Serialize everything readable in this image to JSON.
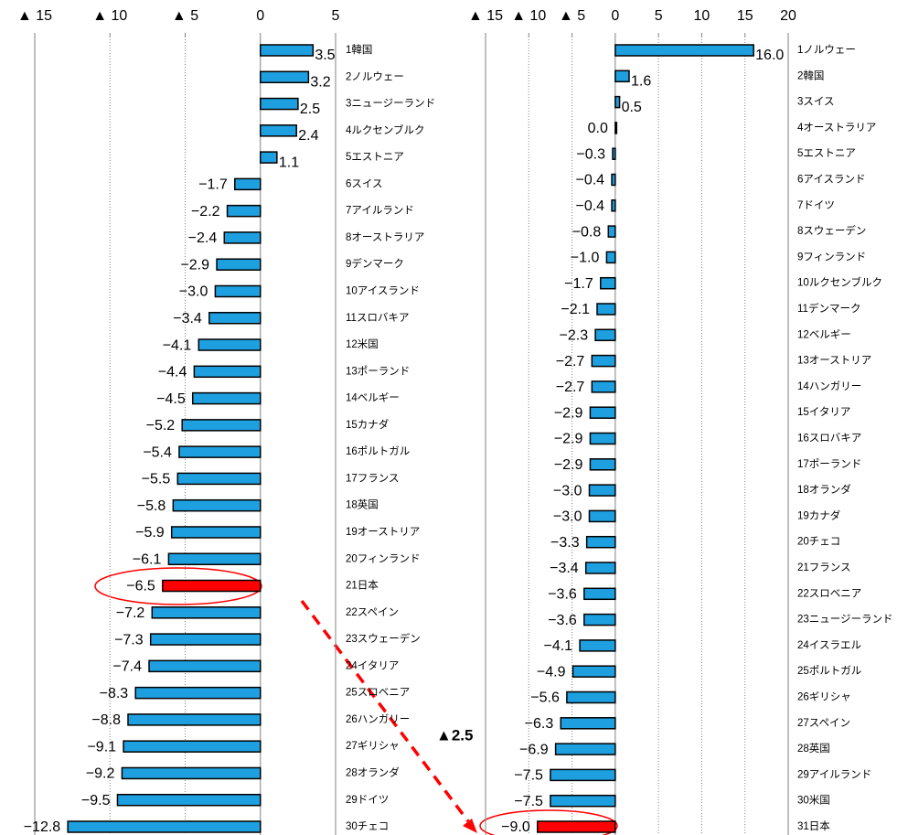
{
  "chart_data": [
    {
      "type": "bar",
      "orientation": "horizontal",
      "categories": [
        "1韓国",
        "2ノルウェー",
        "3ニュージーランド",
        "4ルクセンブルク",
        "5エストニア",
        "6スイス",
        "7アイルランド",
        "8オーストラリア",
        "9デンマーク",
        "10アイスランド",
        "11スロバキア",
        "12米国",
        "13ポーランド",
        "14ベルギー",
        "15カナダ",
        "16ポルトガル",
        "17フランス",
        "18英国",
        "19オーストリア",
        "20フィンランド",
        "21日本",
        "22スペイン",
        "23スウェーデン",
        "24イタリア",
        "25スロベニア",
        "26ハンガリー",
        "27ギリシャ",
        "28オランダ",
        "29ドイツ",
        "30チェコ"
      ],
      "values": [
        3.5,
        3.2,
        2.5,
        2.4,
        1.1,
        -1.7,
        -2.2,
        -2.4,
        -2.9,
        -3.0,
        -3.4,
        -4.1,
        -4.4,
        -4.5,
        -5.2,
        -5.4,
        -5.5,
        -5.8,
        -5.9,
        -6.1,
        -6.5,
        -7.2,
        -7.3,
        -7.4,
        -8.3,
        -8.8,
        -9.1,
        -9.2,
        -9.5,
        -12.8
      ],
      "value_labels": [
        "3.5",
        "3.2",
        "2.5",
        "2.4",
        "1.1",
        "−1.7",
        "−2.2",
        "−2.4",
        "−2.9",
        "−3.0",
        "−3.4",
        "−4.1",
        "−4.4",
        "−4.5",
        "−5.2",
        "−5.4",
        "−5.5",
        "−5.8",
        "−5.9",
        "−6.1",
        "−6.5",
        "−7.2",
        "−7.3",
        "−7.4",
        "−8.3",
        "−8.8",
        "−9.1",
        "−9.2",
        "−9.5",
        "−12.8"
      ],
      "colors": [
        "#1ea0e0",
        "#1ea0e0",
        "#1ea0e0",
        "#1ea0e0",
        "#1ea0e0",
        "#1ea0e0",
        "#1ea0e0",
        "#1ea0e0",
        "#1ea0e0",
        "#1ea0e0",
        "#1ea0e0",
        "#1ea0e0",
        "#1ea0e0",
        "#1ea0e0",
        "#1ea0e0",
        "#1ea0e0",
        "#1ea0e0",
        "#1ea0e0",
        "#1ea0e0",
        "#1ea0e0",
        "#ff0000",
        "#1ea0e0",
        "#1ea0e0",
        "#1ea0e0",
        "#1ea0e0",
        "#1ea0e0",
        "#1ea0e0",
        "#1ea0e0",
        "#1ea0e0",
        "#1ea0e0"
      ],
      "xlim": [
        -15,
        5
      ],
      "xticks": [
        {
          "value": -15,
          "label": "▲ 15"
        },
        {
          "value": -10,
          "label": "▲ 10"
        },
        {
          "value": -5,
          "label": "▲ 5"
        },
        0,
        5
      ],
      "grid": true
    },
    {
      "type": "bar",
      "orientation": "horizontal",
      "categories": [
        "1ノルウェー",
        "2韓国",
        "3スイス",
        "4オーストラリア",
        "5エストニア",
        "6アイスランド",
        "7ドイツ",
        "8スウェーデン",
        "9フィンランド",
        "10ルクセンブルク",
        "11デンマーク",
        "12ベルギー",
        "13オーストリア",
        "14ハンガリー",
        "15イタリア",
        "16スロバキア",
        "17ポーランド",
        "18オランダ",
        "19カナダ",
        "20チェコ",
        "21フランス",
        "22スロベニア",
        "23ニュージーランド",
        "24イスラエル",
        "25ポルトガル",
        "26ギリシャ",
        "27スペイン",
        "28英国",
        "29アイルランド",
        "30米国",
        "31日本"
      ],
      "values": [
        16.0,
        1.6,
        0.5,
        0.0,
        -0.3,
        -0.4,
        -0.4,
        -0.8,
        -1.0,
        -1.7,
        -2.1,
        -2.3,
        -2.7,
        -2.7,
        -2.9,
        -2.9,
        -2.9,
        -3.0,
        -3.0,
        -3.3,
        -3.4,
        -3.6,
        -3.6,
        -4.1,
        -4.9,
        -5.6,
        -6.3,
        -6.9,
        -7.5,
        -7.5,
        -9.0
      ],
      "value_labels": [
        "16.0",
        "1.6",
        "0.5",
        "0.0",
        "−0.3",
        "−0.4",
        "−0.4",
        "−0.8",
        "−1.0",
        "−1.7",
        "−2.1",
        "−2.3",
        "−2.7",
        "−2.7",
        "−2.9",
        "−2.9",
        "−2.9",
        "−3.0",
        "−3.0",
        "−3.3",
        "−3.4",
        "−3.6",
        "−3.6",
        "−4.1",
        "−4.9",
        "−5.6",
        "−6.3",
        "−6.9",
        "−7.5",
        "−7.5",
        "−9.0"
      ],
      "colors": [
        "#1ea0e0",
        "#1ea0e0",
        "#1ea0e0",
        "#1ea0e0",
        "#1ea0e0",
        "#1ea0e0",
        "#1ea0e0",
        "#1ea0e0",
        "#1ea0e0",
        "#1ea0e0",
        "#1ea0e0",
        "#1ea0e0",
        "#1ea0e0",
        "#1ea0e0",
        "#1ea0e0",
        "#1ea0e0",
        "#1ea0e0",
        "#1ea0e0",
        "#1ea0e0",
        "#1ea0e0",
        "#1ea0e0",
        "#1ea0e0",
        "#1ea0e0",
        "#1ea0e0",
        "#1ea0e0",
        "#1ea0e0",
        "#1ea0e0",
        "#1ea0e0",
        "#1ea0e0",
        "#1ea0e0",
        "#ff0000"
      ],
      "xlim": [
        -15,
        20
      ],
      "xticks": [
        {
          "value": -15,
          "label": "▲ 15"
        },
        {
          "value": -10,
          "label": "▲ 10"
        },
        {
          "value": -5,
          "label": "▲ 5"
        },
        0,
        5,
        10,
        15,
        20
      ],
      "grid": true,
      "annotation": "▲2.5"
    }
  ]
}
